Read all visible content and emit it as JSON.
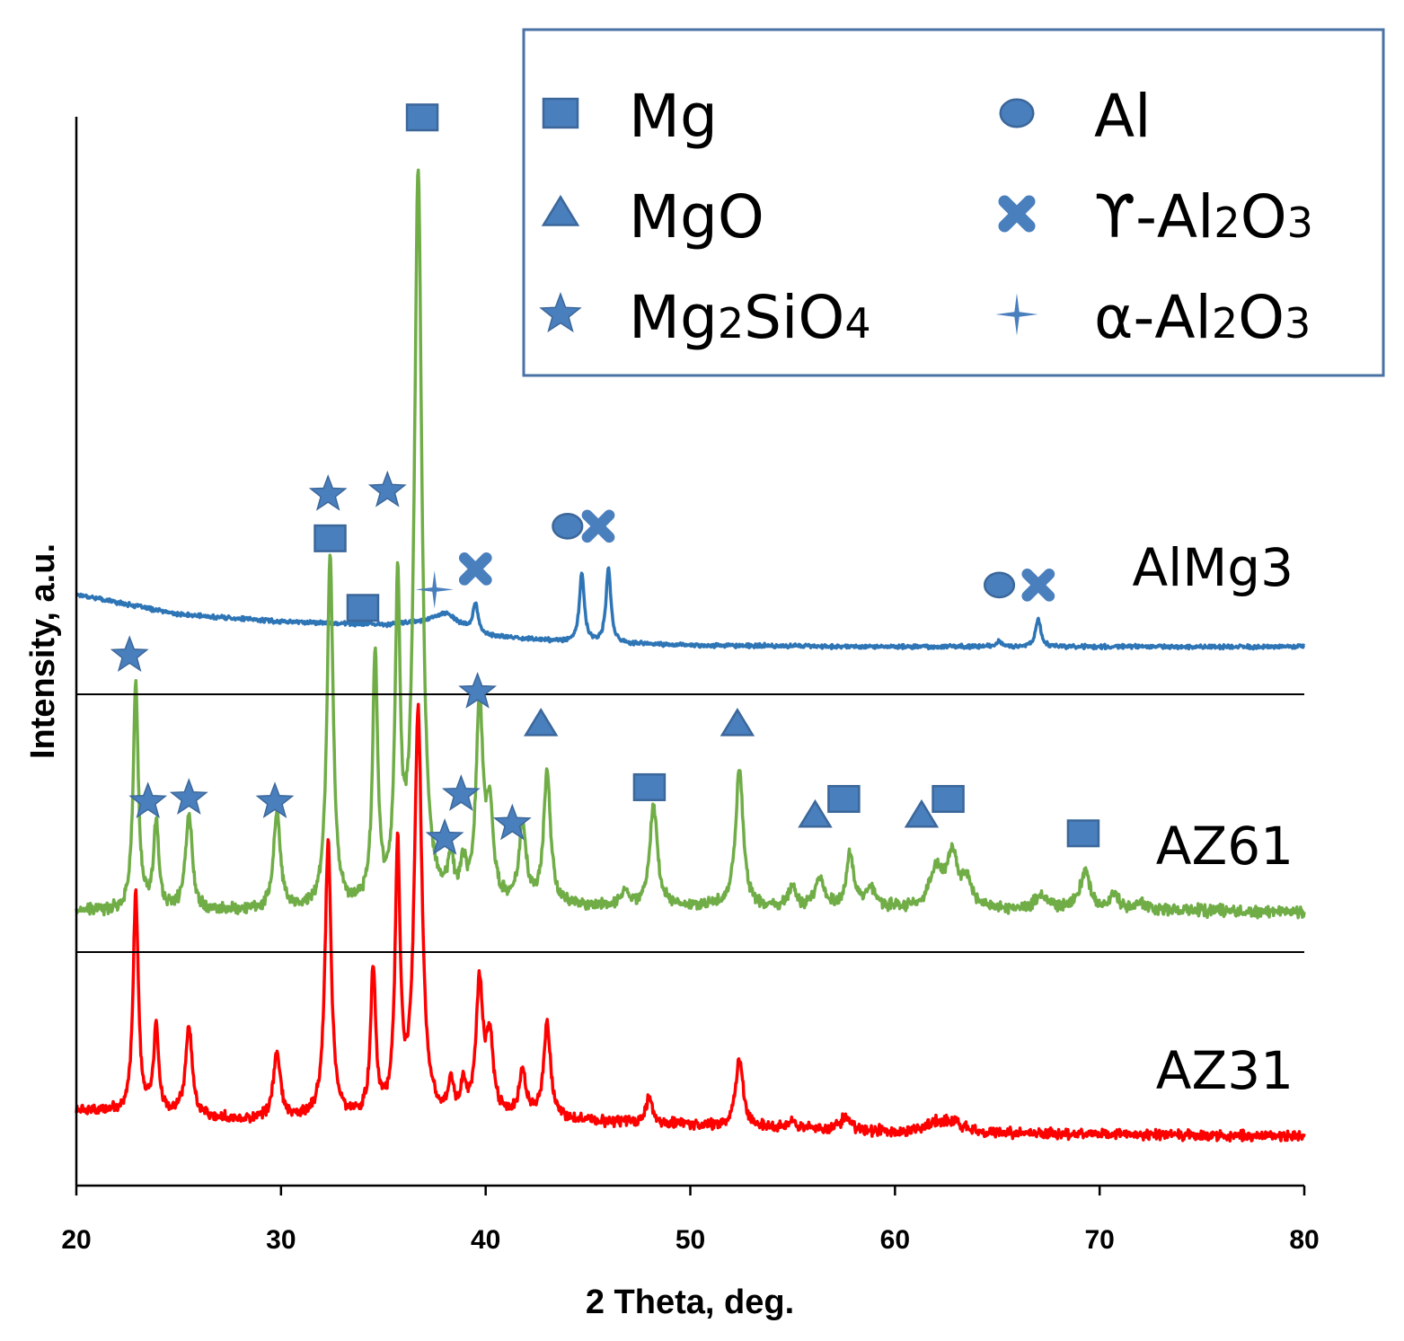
{
  "chart_data": {
    "type": "line",
    "xlabel": "2 Theta, deg.",
    "ylabel": "Intensity, a.u.",
    "xlim": [
      20,
      80
    ],
    "x_ticks": [
      "20",
      "30",
      "40",
      "50",
      "60",
      "70",
      "80"
    ],
    "colors": {
      "AlMg3": "#2e75b6",
      "AZ61": "#70ad47",
      "AZ31": "#ff0000",
      "marker": "#4a7fbd",
      "marker_stroke": "#3b679a",
      "legend_border": "#4a72a5"
    },
    "legend": [
      {
        "marker": "square",
        "text": "Mg",
        "parts": [
          {
            "t": "Mg"
          }
        ]
      },
      {
        "marker": "circle",
        "text": "Al",
        "parts": [
          {
            "t": "Al"
          }
        ]
      },
      {
        "marker": "triangle",
        "text": "MgO",
        "parts": [
          {
            "t": "MgO"
          }
        ]
      },
      {
        "marker": "cross",
        "text": "ϒ-Al2O3",
        "parts": [
          {
            "t": "ϒ-Al"
          },
          {
            "t": "2",
            "sub": true
          },
          {
            "t": "O"
          },
          {
            "t": "3",
            "sub": true
          }
        ]
      },
      {
        "marker": "star5",
        "text": "Mg2SiO4",
        "parts": [
          {
            "t": "Mg"
          },
          {
            "t": "2",
            "sub": true
          },
          {
            "t": "SiO"
          },
          {
            "t": "4",
            "sub": true
          }
        ]
      },
      {
        "marker": "star4",
        "text": "α-Al2O3",
        "parts": [
          {
            "t": "α-Al"
          },
          {
            "t": "2",
            "sub": true
          },
          {
            "t": "O"
          },
          {
            "t": "3",
            "sub": true
          }
        ]
      }
    ],
    "series": [
      {
        "name": "AlMg3",
        "label": "AlMg3",
        "background": [
          [
            20,
            0.75
          ],
          [
            25,
            0.46
          ],
          [
            30,
            0.36
          ],
          [
            35,
            0.31
          ],
          [
            38,
            0.36
          ],
          [
            40,
            0.15
          ],
          [
            45,
            0.05
          ],
          [
            50,
            0.02
          ],
          [
            60,
            0.0
          ],
          [
            80,
            0.0
          ]
        ],
        "peaks": [
          [
            38.0,
            0.12,
            0.7
          ],
          [
            39.5,
            0.4,
            0.15
          ],
          [
            44.7,
            1.0,
            0.14
          ],
          [
            46.0,
            1.08,
            0.14
          ],
          [
            65.1,
            0.08,
            0.15
          ],
          [
            67.0,
            0.4,
            0.15
          ]
        ],
        "noise": 0.022,
        "markers": [
          {
            "type": "circle",
            "x": 44.0,
            "y": 1.72
          },
          {
            "type": "cross",
            "x": 45.5,
            "y": 1.72
          },
          {
            "type": "cross",
            "x": 39.5,
            "y": 1.11
          },
          {
            "type": "circle",
            "x": 65.1,
            "y": 0.88
          },
          {
            "type": "cross",
            "x": 67.0,
            "y": 0.88
          }
        ]
      },
      {
        "name": "AZ61",
        "label": "AZ61",
        "background": [
          [
            20,
            0.0
          ],
          [
            36,
            0.0
          ],
          [
            40,
            0.05
          ],
          [
            45,
            0.06
          ],
          [
            80,
            0.0
          ]
        ],
        "peaks": [
          [
            22.9,
            3.1,
            0.15
          ],
          [
            23.9,
            1.2,
            0.15
          ],
          [
            25.5,
            1.3,
            0.2
          ],
          [
            29.8,
            1.3,
            0.2
          ],
          [
            32.4,
            4.8,
            0.18
          ],
          [
            34.6,
            3.4,
            0.15
          ],
          [
            35.7,
            4.2,
            0.15
          ],
          [
            36.7,
            10.0,
            0.22
          ],
          [
            38.3,
            0.6,
            0.15
          ],
          [
            38.9,
            0.5,
            0.15
          ],
          [
            39.7,
            2.7,
            0.2
          ],
          [
            40.2,
            1.2,
            0.2
          ],
          [
            41.8,
            1.1,
            0.2
          ],
          [
            43.0,
            1.8,
            0.2
          ],
          [
            46.8,
            0.2,
            0.2
          ],
          [
            48.2,
            1.4,
            0.22
          ],
          [
            52.4,
            1.9,
            0.22
          ],
          [
            55.0,
            0.3,
            0.2
          ],
          [
            56.3,
            0.4,
            0.25
          ],
          [
            57.8,
            0.7,
            0.22
          ],
          [
            58.8,
            0.25,
            0.3
          ],
          [
            62.0,
            0.5,
            0.35
          ],
          [
            62.8,
            0.7,
            0.35
          ],
          [
            63.5,
            0.35,
            0.25
          ],
          [
            67.2,
            0.2,
            0.4
          ],
          [
            69.3,
            0.5,
            0.3
          ],
          [
            70.7,
            0.2,
            0.25
          ],
          [
            72.0,
            0.1,
            0.3
          ]
        ],
        "noise": 0.06,
        "markers": [
          {
            "type": "square",
            "x": 36.9,
            "y": 10.85
          },
          {
            "type": "star5",
            "x": 32.3,
            "y": 5.7
          },
          {
            "type": "square",
            "x": 32.4,
            "y": 5.1
          },
          {
            "type": "star5",
            "x": 35.2,
            "y": 5.75
          },
          {
            "type": "square",
            "x": 34.0,
            "y": 4.15
          },
          {
            "type": "star4",
            "x": 37.5,
            "y": 4.4
          },
          {
            "type": "star5",
            "x": 22.6,
            "y": 3.5
          },
          {
            "type": "star5",
            "x": 39.6,
            "y": 3.0
          },
          {
            "type": "star5",
            "x": 23.5,
            "y": 1.5
          },
          {
            "type": "star5",
            "x": 25.5,
            "y": 1.55
          },
          {
            "type": "star5",
            "x": 29.7,
            "y": 1.5
          },
          {
            "type": "star5",
            "x": 38.8,
            "y": 1.6
          },
          {
            "type": "star5",
            "x": 38.0,
            "y": 1.0
          },
          {
            "type": "star5",
            "x": 41.3,
            "y": 1.2
          },
          {
            "type": "triangle",
            "x": 42.7,
            "y": 2.55
          },
          {
            "type": "triangle",
            "x": 52.3,
            "y": 2.55
          },
          {
            "type": "square",
            "x": 48.0,
            "y": 1.7
          },
          {
            "type": "square",
            "x": 57.5,
            "y": 1.54
          },
          {
            "type": "square",
            "x": 62.6,
            "y": 1.54
          },
          {
            "type": "triangle",
            "x": 56.1,
            "y": 1.3
          },
          {
            "type": "triangle",
            "x": 61.3,
            "y": 1.3
          },
          {
            "type": "square",
            "x": 69.2,
            "y": 1.07
          }
        ]
      },
      {
        "name": "AZ31",
        "label": "AZ31",
        "background": [
          [
            20,
            0.35
          ],
          [
            28,
            0.22
          ],
          [
            36,
            0.22
          ],
          [
            40,
            0.25
          ],
          [
            45,
            0.2
          ],
          [
            60,
            0.05
          ],
          [
            80,
            0.0
          ]
        ],
        "peaks": [
          [
            22.9,
            3.0,
            0.15
          ],
          [
            23.9,
            1.2,
            0.15
          ],
          [
            25.5,
            1.2,
            0.2
          ],
          [
            29.8,
            0.9,
            0.2
          ],
          [
            32.3,
            3.8,
            0.18
          ],
          [
            34.5,
            2.0,
            0.15
          ],
          [
            35.7,
            3.6,
            0.15
          ],
          [
            36.7,
            5.5,
            0.22
          ],
          [
            38.3,
            0.4,
            0.15
          ],
          [
            38.9,
            0.4,
            0.15
          ],
          [
            39.7,
            1.8,
            0.2
          ],
          [
            40.2,
            1.0,
            0.2
          ],
          [
            41.8,
            0.6,
            0.2
          ],
          [
            43.0,
            1.3,
            0.2
          ],
          [
            48.0,
            0.35,
            0.2
          ],
          [
            52.4,
            0.9,
            0.22
          ],
          [
            55.0,
            0.1,
            0.2
          ],
          [
            57.6,
            0.2,
            0.25
          ],
          [
            62.0,
            0.12,
            0.6
          ],
          [
            62.8,
            0.12,
            0.6
          ]
        ],
        "noise": 0.055,
        "markers": []
      }
    ]
  }
}
